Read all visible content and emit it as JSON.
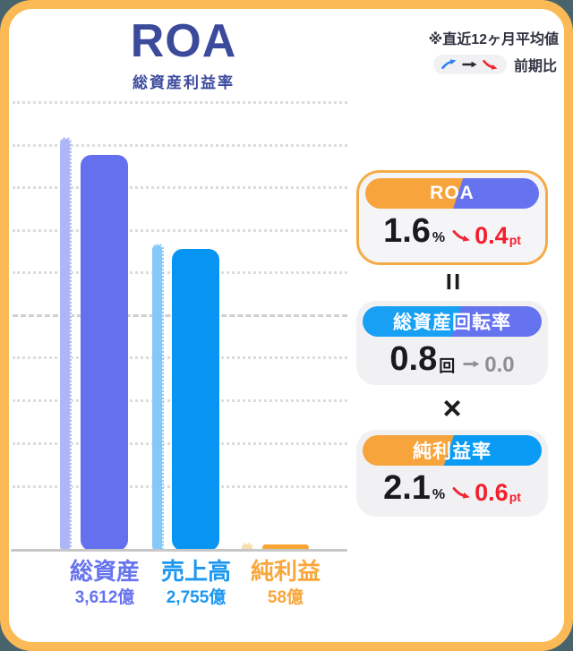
{
  "colors": {
    "page_background": "#49636d",
    "frame_border": "#fbba55",
    "title_navy": "#3c4a9c",
    "assets_purple": "#6470ee",
    "assets_purple_light": "#aeb6f8",
    "sales_blue": "#0894f2",
    "sales_blue_light": "#85c9f9",
    "profit_orange": "#f9a534",
    "profit_orange_light": "#f8dcae",
    "delta_red": "#f2202e",
    "delta_gray": "#8e8e93"
  },
  "header": {
    "title": "ROA",
    "subtitle": "総資産利益率",
    "note": "※直近12ヶ月平均値",
    "legend_label": "前期比"
  },
  "chart_data": {
    "type": "bar",
    "categories": [
      "総資産",
      "売上高",
      "純利益"
    ],
    "series": [
      {
        "name": "previous_period_estimated",
        "values": [
          3775,
          2807,
          73
        ]
      },
      {
        "name": "current_12mo_average",
        "values": [
          3612,
          2755,
          58
        ]
      }
    ],
    "value_labels": [
      "3,612億",
      "2,755億",
      "58億"
    ],
    "unit": "億",
    "ylim": [
      0,
      4400
    ],
    "grid": "dotted-horizontal",
    "legend_position": "top-right"
  },
  "formula": {
    "roa": {
      "title": "ROA",
      "value": "1.6",
      "unit": "%",
      "delta": "0.4",
      "delta_unit": "pt",
      "trend": "down"
    },
    "equals": "=",
    "turnover": {
      "title": "総資産回転率",
      "value": "0.8",
      "unit": "回",
      "delta": "0.0",
      "delta_unit": "",
      "trend": "flat"
    },
    "times": "×",
    "margin": {
      "title": "純利益率",
      "value": "2.1",
      "unit": "%",
      "delta": "0.6",
      "delta_unit": "pt",
      "trend": "down"
    }
  }
}
